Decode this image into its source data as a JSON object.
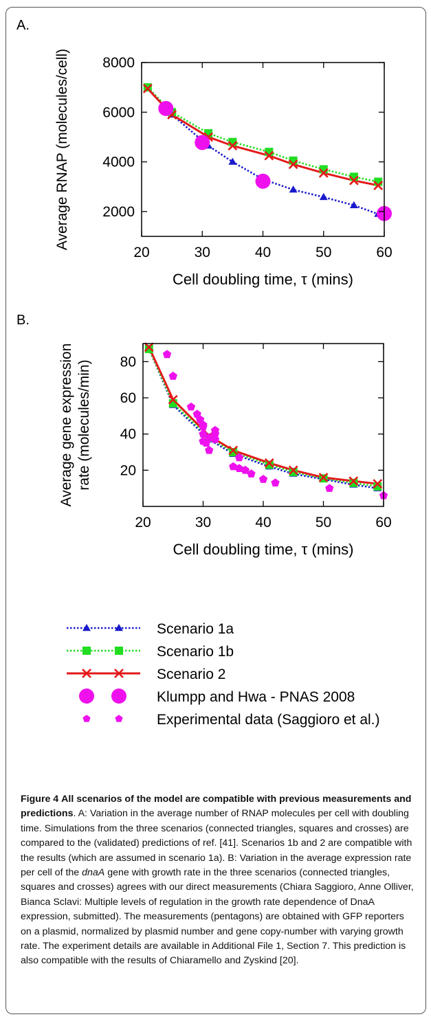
{
  "figure": {
    "colors": {
      "scenario_1a": "#1a1acc",
      "scenario_1b": "#22dd22",
      "scenario_2": "#e31a1a",
      "klumpp": "#ee11ee",
      "experimental": "#ee11ee"
    },
    "legend": [
      {
        "label": "Scenario 1a",
        "marker": "triangle-icon"
      },
      {
        "label": "Scenario 1b",
        "marker": "square-icon"
      },
      {
        "label": "Scenario 2",
        "marker": "cross-icon"
      },
      {
        "label": "Klumpp and Hwa - PNAS 2008",
        "marker": "circle-icon"
      },
      {
        "label": "Experimental data (Saggioro et al.)",
        "marker": "pentagon-icon"
      }
    ],
    "caption": {
      "fig_label": "Figure 4",
      "title": "All scenarios of the model are compatible with previous measurements and predictions",
      "p1": ". A: Variation in the average number of RNAP molecules per cell with doubling time. Simulations from the three scenarios (connected triangles, squares and crosses) are compared to the (validated) predictions of ref. [41]. Scenarios 1b and 2 are compatible with the results (which are assumed in scenario 1a). B: Variation in the average expression rate per cell of the ",
      "gene": "dnaA",
      "p2": " gene with growth rate in the three scenarios (connected triangles, squares and crosses) agrees with our direct measurements (Chiara Saggioro, Anne Olliver, Bianca Sclavi: Multiple levels of regulation in the growth rate dependence of DnaA expression, submitted). The measurements (pentagons) are obtained with GFP reporters on a plasmid, normalized by plasmid number and gene copy-number with varying growth rate. The experiment details are available in Additional File 1, Section 7. This prediction is also compatible with the results of Chiaramello and Zyskind [20]."
    }
  },
  "chart_data": [
    {
      "panel_label": "A.",
      "type": "line",
      "xlabel": "Cell doubling time, τ (mins)",
      "ylabel": "Average RNAP (molecules/cell)",
      "xlim": [
        20,
        60
      ],
      "ylim": [
        1000,
        8000
      ],
      "xticks": [
        20,
        30,
        40,
        50,
        60
      ],
      "yticks": [
        2000,
        4000,
        6000,
        8000
      ],
      "grid": false,
      "series": [
        {
          "name": "Scenario 1a",
          "key": "scenario_1a",
          "marker": "triangle",
          "style": "dotted",
          "x": [
            21,
            25,
            31,
            35,
            40,
            45,
            50,
            55,
            59
          ],
          "y": [
            7000,
            5900,
            4650,
            4000,
            3300,
            2880,
            2580,
            2250,
            1900
          ]
        },
        {
          "name": "Scenario 1b",
          "key": "scenario_1b",
          "marker": "square",
          "style": "dotted",
          "x": [
            21,
            25,
            31,
            35,
            41,
            45,
            50,
            55,
            59
          ],
          "y": [
            7000,
            6000,
            5150,
            4800,
            4400,
            4050,
            3700,
            3400,
            3200
          ]
        },
        {
          "name": "Scenario 2",
          "key": "scenario_2",
          "marker": "cross",
          "style": "solid",
          "x": [
            21,
            25,
            31,
            35,
            41,
            45,
            50,
            55,
            59
          ],
          "y": [
            6950,
            5900,
            5000,
            4650,
            4250,
            3900,
            3550,
            3250,
            3050
          ]
        },
        {
          "name": "Klumpp and Hwa - PNAS 2008",
          "key": "klumpp",
          "marker": "circle",
          "style": "none",
          "x": [
            24,
            30,
            40,
            60
          ],
          "y": [
            6150,
            4780,
            3220,
            1920
          ]
        }
      ]
    },
    {
      "panel_label": "B.",
      "type": "line",
      "xlabel": "Cell doubling time, τ (mins)",
      "ylabel_line1": "Average gene expression",
      "ylabel_line2": "rate (molecules/min)",
      "xlim": [
        20,
        60
      ],
      "ylim": [
        0,
        90
      ],
      "xticks": [
        20,
        30,
        40,
        50,
        60
      ],
      "yticks": [
        20,
        40,
        60,
        80
      ],
      "grid": false,
      "series": [
        {
          "name": "Scenario 1a",
          "key": "scenario_1a",
          "marker": "triangle",
          "style": "dotted",
          "x": [
            21,
            25,
            31,
            35,
            41,
            45,
            50,
            55,
            59
          ],
          "y": [
            87,
            56,
            37,
            29,
            22,
            18,
            15,
            12,
            10
          ]
        },
        {
          "name": "Scenario 1b",
          "key": "scenario_1b",
          "marker": "square",
          "style": "dotted",
          "x": [
            21,
            25,
            31,
            35,
            41,
            45,
            50,
            55,
            59
          ],
          "y": [
            87,
            57,
            38,
            30,
            23,
            19,
            15.5,
            13,
            11
          ]
        },
        {
          "name": "Scenario 2",
          "key": "scenario_2",
          "marker": "cross",
          "style": "solid",
          "x": [
            21,
            25,
            31,
            35,
            41,
            45,
            50,
            55,
            59
          ],
          "y": [
            88,
            59,
            39,
            31,
            24,
            20,
            16,
            14,
            12.5
          ]
        },
        {
          "name": "Experimental data (Saggioro et al.)",
          "key": "experimental",
          "marker": "pentagon",
          "style": "none",
          "x": [
            24,
            25,
            28,
            29,
            29.5,
            30,
            30,
            30,
            30,
            30.5,
            31,
            31,
            32,
            32,
            32,
            35,
            36,
            36,
            37,
            38,
            40,
            42,
            51,
            60
          ],
          "y": [
            84,
            72,
            55,
            51,
            48,
            45,
            40,
            36,
            44,
            35,
            38,
            31,
            42,
            40,
            37,
            22,
            21,
            27,
            20,
            18,
            15,
            13,
            10,
            6
          ]
        }
      ]
    }
  ]
}
